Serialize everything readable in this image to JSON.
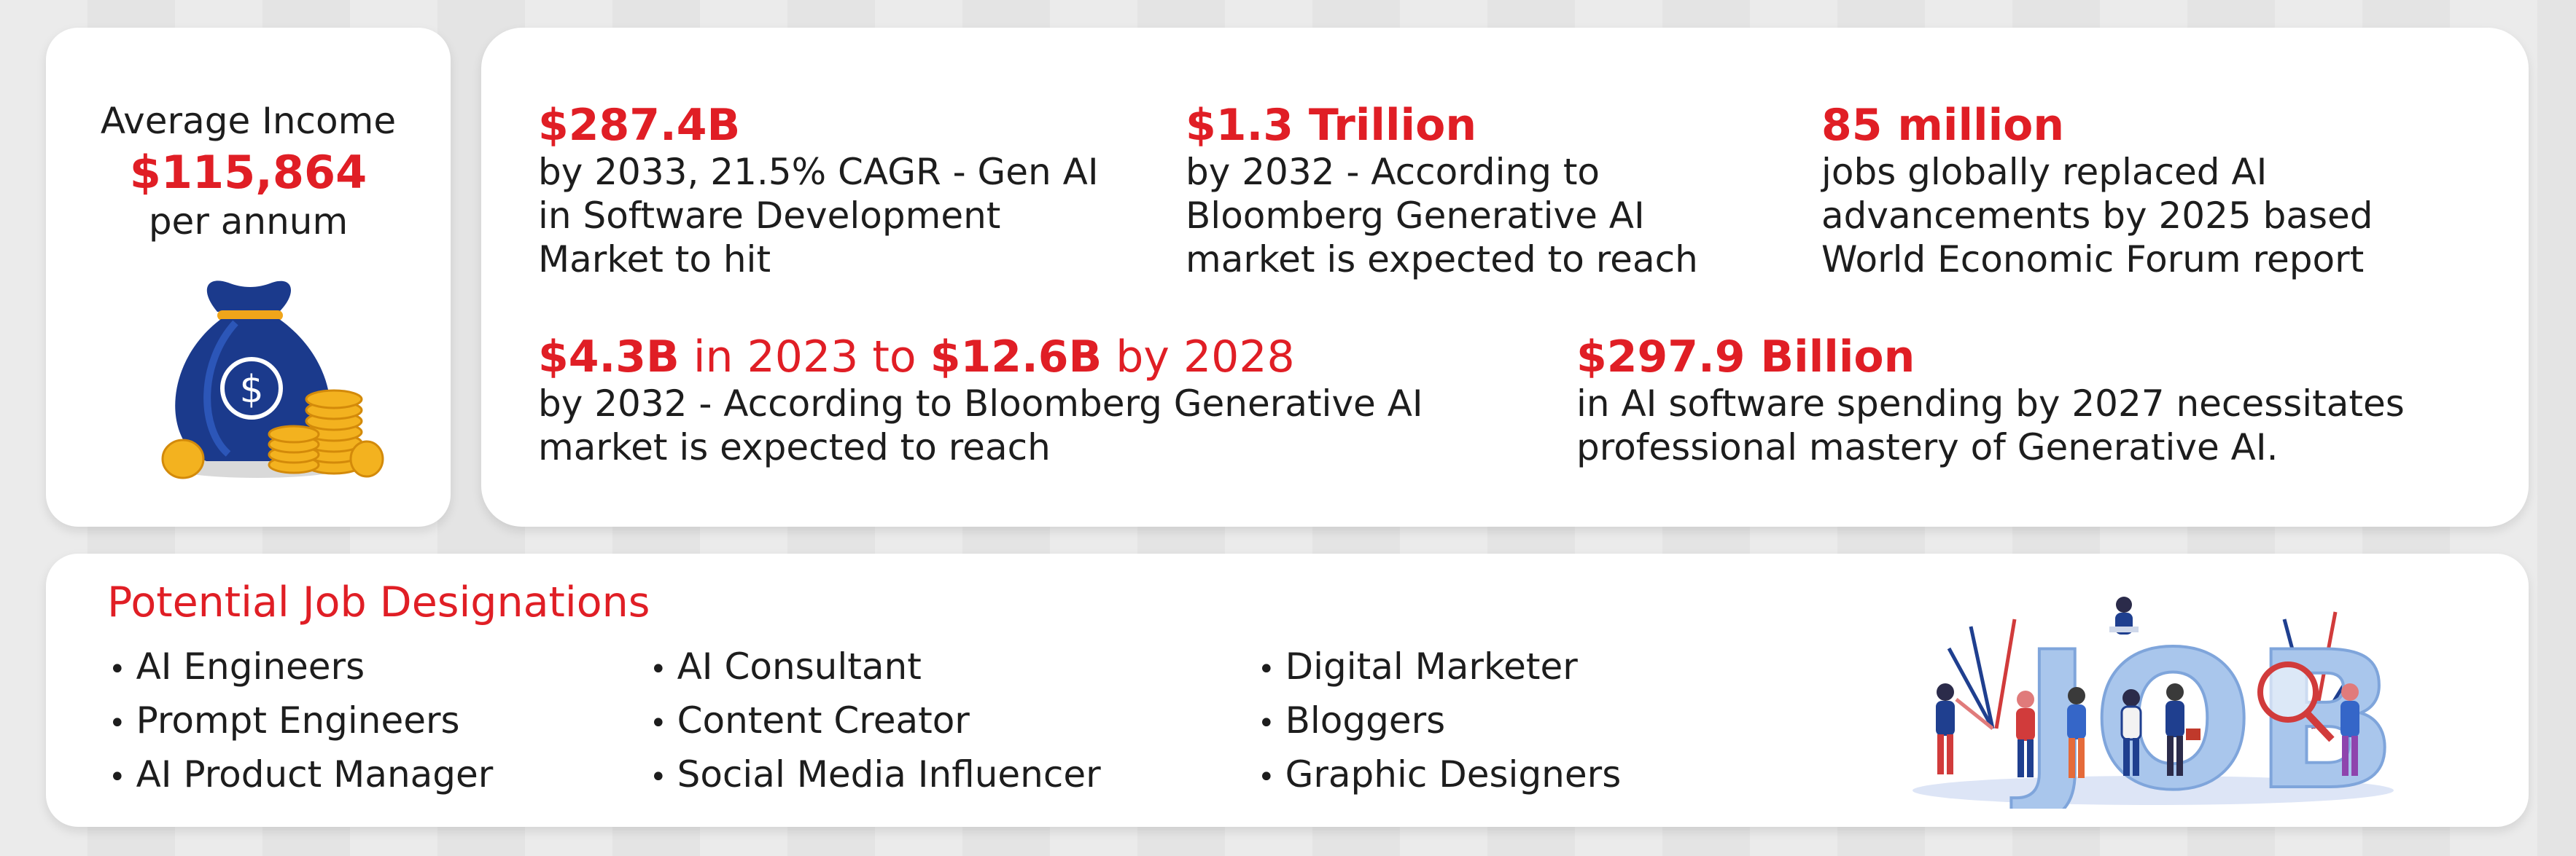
{
  "income": {
    "label": "Average Income",
    "value": "$115,864",
    "period": "per annum",
    "icon": "money-bag-with-coins-icon"
  },
  "stats_top": [
    {
      "headline": "$287.4B",
      "desc": [
        "by 2033, 21.5% CAGR - Gen AI",
        "in Software Development",
        "Market to hit"
      ]
    },
    {
      "headline": "$1.3 Trillion",
      "desc": [
        "by 2032 - According to",
        "Bloomberg Generative AI",
        "market is expected to reach"
      ]
    },
    {
      "headline": "85 million",
      "desc": [
        "jobs globally replaced AI",
        "advancements by 2025 based",
        "World Economic Forum report"
      ]
    }
  ],
  "stats_bottom": [
    {
      "headline_parts": [
        "$4.3B",
        " in 2023 to ",
        "$12.6B",
        " by 2028"
      ],
      "desc": [
        "by 2032 - According to Bloomberg Generative AI",
        "market is expected to reach"
      ]
    },
    {
      "headline": "$297.9 Billion",
      "desc": [
        "in AI software spending by 2027 necessitates",
        "professional mastery of Generative AI."
      ]
    }
  ],
  "jobs": {
    "title": "Potential Job Designations",
    "columns": [
      [
        "AI Engineers",
        "Prompt Engineers",
        "AI Product Manager"
      ],
      [
        "AI Consultant",
        "Content Creator",
        "Social Media Influencer"
      ],
      [
        "Digital Marketer",
        "Bloggers",
        "Graphic Designers"
      ]
    ],
    "illustration_text": "JOB",
    "illustration_icon": "job-search-people-illustration"
  },
  "colors": {
    "accent": "#e01e25",
    "text": "#1d1d1d",
    "card": "#ffffff",
    "job_letters": "#a9c6ec"
  }
}
